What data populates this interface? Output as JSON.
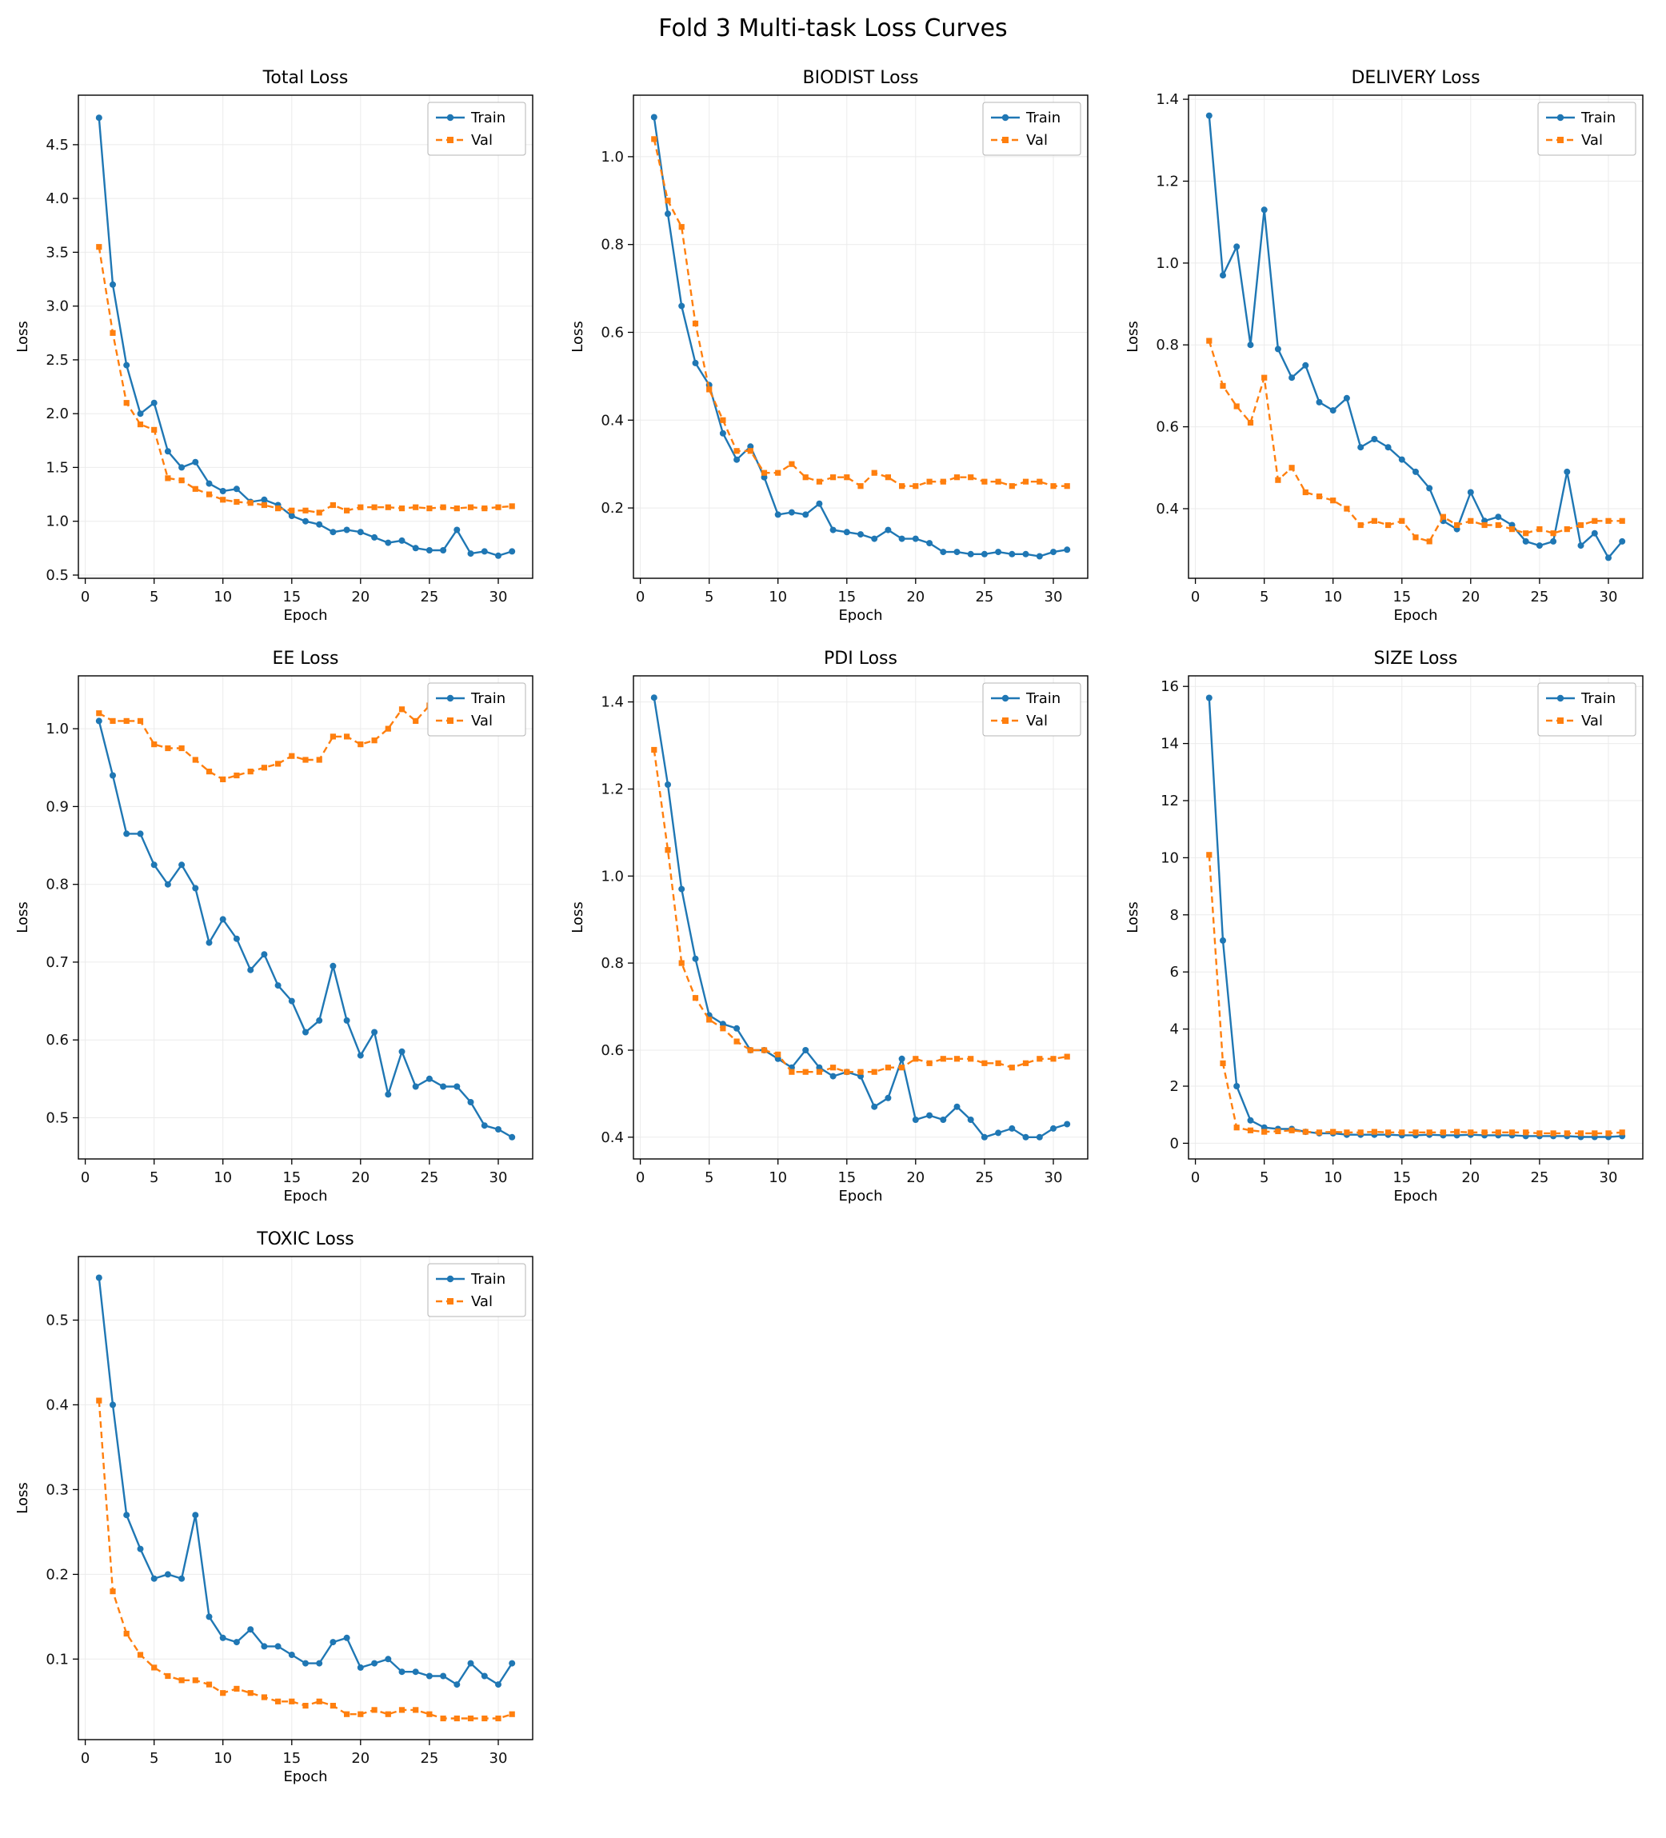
{
  "figure_title": "Fold 3 Multi-task Loss Curves",
  "epochs": [
    1,
    2,
    3,
    4,
    5,
    6,
    7,
    8,
    9,
    10,
    11,
    12,
    13,
    14,
    15,
    16,
    17,
    18,
    19,
    20,
    21,
    22,
    23,
    24,
    25,
    26,
    27,
    28,
    29,
    30,
    31
  ],
  "style": {
    "train_color": "#1f77b4",
    "val_color": "#ff7f0e",
    "grid_color": "#ebebeb",
    "axes_color": "#000000",
    "background": "#ffffff"
  },
  "legend": {
    "train_label": "Train",
    "val_label": "Val",
    "position": "upper right"
  },
  "chart_data": [
    {
      "type": "line",
      "title": "Total Loss",
      "xlabel": "Epoch",
      "ylabel": "Loss",
      "xlim": [
        -0.5,
        32.5
      ],
      "ylim": [
        0.47,
        4.96
      ],
      "xticks": [
        0,
        5,
        10,
        15,
        20,
        25,
        30
      ],
      "xticklabels": [
        "0",
        "5",
        "10",
        "15",
        "20",
        "25",
        "30"
      ],
      "yticks": [
        0.5,
        1.0,
        1.5,
        2.0,
        2.5,
        3.0,
        3.5,
        4.0,
        4.5
      ],
      "yticklabels": [
        "0.5",
        "1.0",
        "1.5",
        "2.0",
        "2.5",
        "3.0",
        "3.5",
        "4.0",
        "4.5"
      ],
      "legend_position": "upper right",
      "grid": true,
      "series": [
        {
          "name": "Train",
          "marker": "circle",
          "dashed": false,
          "values": [
            4.75,
            3.2,
            2.45,
            2.0,
            2.1,
            1.65,
            1.5,
            1.55,
            1.35,
            1.28,
            1.3,
            1.18,
            1.2,
            1.15,
            1.05,
            1.0,
            0.97,
            0.9,
            0.92,
            0.9,
            0.85,
            0.8,
            0.82,
            0.75,
            0.73,
            0.73,
            0.92,
            0.7,
            0.72,
            0.68,
            0.72
          ]
        },
        {
          "name": "Val",
          "marker": "square",
          "dashed": true,
          "values": [
            3.55,
            2.75,
            2.1,
            1.9,
            1.85,
            1.4,
            1.38,
            1.3,
            1.25,
            1.2,
            1.18,
            1.17,
            1.15,
            1.12,
            1.1,
            1.1,
            1.08,
            1.15,
            1.1,
            1.13,
            1.13,
            1.13,
            1.12,
            1.13,
            1.12,
            1.13,
            1.12,
            1.13,
            1.12,
            1.13,
            1.14
          ]
        }
      ]
    },
    {
      "type": "line",
      "title": "BIODIST Loss",
      "xlabel": "Epoch",
      "ylabel": "Loss",
      "xlim": [
        -0.5,
        32.5
      ],
      "ylim": [
        0.04,
        1.14
      ],
      "xticks": [
        0,
        5,
        10,
        15,
        20,
        25,
        30
      ],
      "xticklabels": [
        "0",
        "5",
        "10",
        "15",
        "20",
        "25",
        "30"
      ],
      "yticks": [
        0.2,
        0.4,
        0.6,
        0.8,
        1.0
      ],
      "yticklabels": [
        "0.2",
        "0.4",
        "0.6",
        "0.8",
        "1.0"
      ],
      "legend_position": "upper right",
      "grid": true,
      "series": [
        {
          "name": "Train",
          "marker": "circle",
          "dashed": false,
          "values": [
            1.09,
            0.87,
            0.66,
            0.53,
            0.48,
            0.37,
            0.31,
            0.34,
            0.27,
            0.185,
            0.19,
            0.185,
            0.21,
            0.15,
            0.145,
            0.14,
            0.13,
            0.15,
            0.13,
            0.13,
            0.12,
            0.1,
            0.1,
            0.095,
            0.095,
            0.1,
            0.095,
            0.095,
            0.09,
            0.1,
            0.105
          ]
        },
        {
          "name": "Val",
          "marker": "square",
          "dashed": true,
          "values": [
            1.04,
            0.9,
            0.84,
            0.62,
            0.47,
            0.4,
            0.33,
            0.33,
            0.28,
            0.28,
            0.3,
            0.27,
            0.26,
            0.27,
            0.27,
            0.25,
            0.28,
            0.27,
            0.25,
            0.25,
            0.26,
            0.26,
            0.27,
            0.27,
            0.26,
            0.26,
            0.25,
            0.26,
            0.26,
            0.25,
            0.25
          ]
        }
      ]
    },
    {
      "type": "line",
      "title": "DELIVERY Loss",
      "xlabel": "Epoch",
      "ylabel": "Loss",
      "xlim": [
        -0.5,
        32.5
      ],
      "ylim": [
        0.23,
        1.41
      ],
      "xticks": [
        0,
        5,
        10,
        15,
        20,
        25,
        30
      ],
      "xticklabels": [
        "0",
        "5",
        "10",
        "15",
        "20",
        "25",
        "30"
      ],
      "yticks": [
        0.4,
        0.6,
        0.8,
        1.0,
        1.2,
        1.4
      ],
      "yticklabels": [
        "0.4",
        "0.6",
        "0.8",
        "1.0",
        "1.2",
        "1.4"
      ],
      "legend_position": "upper right",
      "grid": true,
      "series": [
        {
          "name": "Train",
          "marker": "circle",
          "dashed": false,
          "values": [
            1.36,
            0.97,
            1.04,
            0.8,
            1.13,
            0.79,
            0.72,
            0.75,
            0.66,
            0.64,
            0.67,
            0.55,
            0.57,
            0.55,
            0.52,
            0.49,
            0.45,
            0.37,
            0.35,
            0.44,
            0.37,
            0.38,
            0.36,
            0.32,
            0.31,
            0.32,
            0.49,
            0.31,
            0.34,
            0.28,
            0.32
          ]
        },
        {
          "name": "Val",
          "marker": "square",
          "dashed": true,
          "values": [
            0.81,
            0.7,
            0.65,
            0.61,
            0.72,
            0.47,
            0.5,
            0.44,
            0.43,
            0.42,
            0.4,
            0.36,
            0.37,
            0.36,
            0.37,
            0.33,
            0.32,
            0.38,
            0.36,
            0.37,
            0.36,
            0.36,
            0.35,
            0.34,
            0.35,
            0.34,
            0.35,
            0.36,
            0.37,
            0.37,
            0.37
          ]
        }
      ]
    },
    {
      "type": "line",
      "title": "EE Loss",
      "xlabel": "Epoch",
      "ylabel": "Loss",
      "xlim": [
        -0.5,
        32.5
      ],
      "ylim": [
        0.447,
        1.068
      ],
      "xticks": [
        0,
        5,
        10,
        15,
        20,
        25,
        30
      ],
      "xticklabels": [
        "0",
        "5",
        "10",
        "15",
        "20",
        "25",
        "30"
      ],
      "yticks": [
        0.5,
        0.6,
        0.7,
        0.8,
        0.9,
        1.0
      ],
      "yticklabels": [
        "0.5",
        "0.6",
        "0.7",
        "0.8",
        "0.9",
        "1.0"
      ],
      "legend_position": "upper right",
      "grid": true,
      "series": [
        {
          "name": "Train",
          "marker": "circle",
          "dashed": false,
          "values": [
            1.01,
            0.94,
            0.865,
            0.865,
            0.825,
            0.8,
            0.825,
            0.795,
            0.725,
            0.755,
            0.73,
            0.69,
            0.71,
            0.67,
            0.65,
            0.61,
            0.625,
            0.695,
            0.625,
            0.58,
            0.61,
            0.53,
            0.585,
            0.54,
            0.55,
            0.54,
            0.54,
            0.52,
            0.49,
            0.485,
            0.475
          ]
        },
        {
          "name": "Val",
          "marker": "square",
          "dashed": true,
          "values": [
            1.02,
            1.01,
            1.01,
            1.01,
            0.98,
            0.975,
            0.975,
            0.96,
            0.945,
            0.935,
            0.94,
            0.945,
            0.95,
            0.955,
            0.965,
            0.96,
            0.96,
            0.99,
            0.99,
            0.98,
            0.985,
            1.0,
            1.025,
            1.01,
            1.03,
            1.04,
            1.0,
            1.01,
            1.02,
            1.04,
            1.03
          ]
        }
      ]
    },
    {
      "type": "line",
      "title": "PDI Loss",
      "xlabel": "Epoch",
      "ylabel": "Loss",
      "xlim": [
        -0.5,
        32.5
      ],
      "ylim": [
        0.35,
        1.46
      ],
      "xticks": [
        0,
        5,
        10,
        15,
        20,
        25,
        30
      ],
      "xticklabels": [
        "0",
        "5",
        "10",
        "15",
        "20",
        "25",
        "30"
      ],
      "yticks": [
        0.4,
        0.6,
        0.8,
        1.0,
        1.2,
        1.4
      ],
      "yticklabels": [
        "0.4",
        "0.6",
        "0.8",
        "1.0",
        "1.2",
        "1.4"
      ],
      "legend_position": "upper right",
      "grid": true,
      "series": [
        {
          "name": "Train",
          "marker": "circle",
          "dashed": false,
          "values": [
            1.41,
            1.21,
            0.97,
            0.81,
            0.68,
            0.66,
            0.65,
            0.6,
            0.6,
            0.58,
            0.56,
            0.6,
            0.56,
            0.54,
            0.55,
            0.54,
            0.47,
            0.49,
            0.58,
            0.44,
            0.45,
            0.44,
            0.47,
            0.44,
            0.4,
            0.41,
            0.42,
            0.4,
            0.4,
            0.42,
            0.43
          ]
        },
        {
          "name": "Val",
          "marker": "square",
          "dashed": true,
          "values": [
            1.29,
            1.06,
            0.8,
            0.72,
            0.67,
            0.65,
            0.62,
            0.6,
            0.6,
            0.59,
            0.55,
            0.55,
            0.55,
            0.56,
            0.55,
            0.55,
            0.55,
            0.56,
            0.56,
            0.58,
            0.57,
            0.58,
            0.58,
            0.58,
            0.57,
            0.57,
            0.56,
            0.57,
            0.58,
            0.58,
            0.585
          ]
        }
      ]
    },
    {
      "type": "line",
      "title": "SIZE Loss",
      "xlabel": "Epoch",
      "ylabel": "Loss",
      "xlim": [
        -0.5,
        32.5
      ],
      "ylim": [
        -0.55,
        16.37
      ],
      "xticks": [
        0,
        5,
        10,
        15,
        20,
        25,
        30
      ],
      "xticklabels": [
        "0",
        "5",
        "10",
        "15",
        "20",
        "25",
        "30"
      ],
      "yticks": [
        0,
        2,
        4,
        6,
        8,
        10,
        12,
        14,
        16
      ],
      "yticklabels": [
        "0",
        "2",
        "4",
        "6",
        "8",
        "10",
        "12",
        "14",
        "16"
      ],
      "legend_position": "upper right",
      "grid": true,
      "series": [
        {
          "name": "Train",
          "marker": "circle",
          "dashed": false,
          "values": [
            15.6,
            7.1,
            2.0,
            0.8,
            0.55,
            0.5,
            0.5,
            0.4,
            0.35,
            0.35,
            0.3,
            0.3,
            0.3,
            0.3,
            0.28,
            0.28,
            0.3,
            0.28,
            0.28,
            0.3,
            0.28,
            0.28,
            0.28,
            0.25,
            0.25,
            0.25,
            0.25,
            0.22,
            0.22,
            0.22,
            0.25
          ]
        },
        {
          "name": "Val",
          "marker": "square",
          "dashed": true,
          "values": [
            10.1,
            2.8,
            0.55,
            0.45,
            0.4,
            0.42,
            0.45,
            0.4,
            0.38,
            0.4,
            0.38,
            0.38,
            0.4,
            0.38,
            0.38,
            0.38,
            0.38,
            0.38,
            0.4,
            0.38,
            0.38,
            0.38,
            0.38,
            0.38,
            0.35,
            0.35,
            0.35,
            0.35,
            0.35,
            0.35,
            0.38
          ]
        }
      ]
    },
    {
      "type": "line",
      "title": "TOXIC Loss",
      "xlabel": "Epoch",
      "ylabel": "Loss",
      "xlim": [
        -0.5,
        32.5
      ],
      "ylim": [
        0.005,
        0.575
      ],
      "xticks": [
        0,
        5,
        10,
        15,
        20,
        25,
        30
      ],
      "xticklabels": [
        "0",
        "5",
        "10",
        "15",
        "20",
        "25",
        "30"
      ],
      "yticks": [
        0.1,
        0.2,
        0.3,
        0.4,
        0.5
      ],
      "yticklabels": [
        "0.1",
        "0.2",
        "0.3",
        "0.4",
        "0.5"
      ],
      "legend_position": "upper right",
      "grid": true,
      "series": [
        {
          "name": "Train",
          "marker": "circle",
          "dashed": false,
          "values": [
            0.55,
            0.4,
            0.27,
            0.23,
            0.195,
            0.2,
            0.195,
            0.27,
            0.15,
            0.125,
            0.12,
            0.135,
            0.115,
            0.115,
            0.105,
            0.095,
            0.095,
            0.12,
            0.125,
            0.09,
            0.095,
            0.1,
            0.085,
            0.085,
            0.08,
            0.08,
            0.07,
            0.095,
            0.08,
            0.07,
            0.095
          ]
        },
        {
          "name": "Val",
          "marker": "square",
          "dashed": true,
          "values": [
            0.405,
            0.18,
            0.13,
            0.105,
            0.09,
            0.08,
            0.075,
            0.075,
            0.07,
            0.06,
            0.065,
            0.06,
            0.055,
            0.05,
            0.05,
            0.045,
            0.05,
            0.045,
            0.035,
            0.035,
            0.04,
            0.035,
            0.04,
            0.04,
            0.035,
            0.03,
            0.03,
            0.03,
            0.03,
            0.03,
            0.035
          ]
        }
      ]
    }
  ]
}
